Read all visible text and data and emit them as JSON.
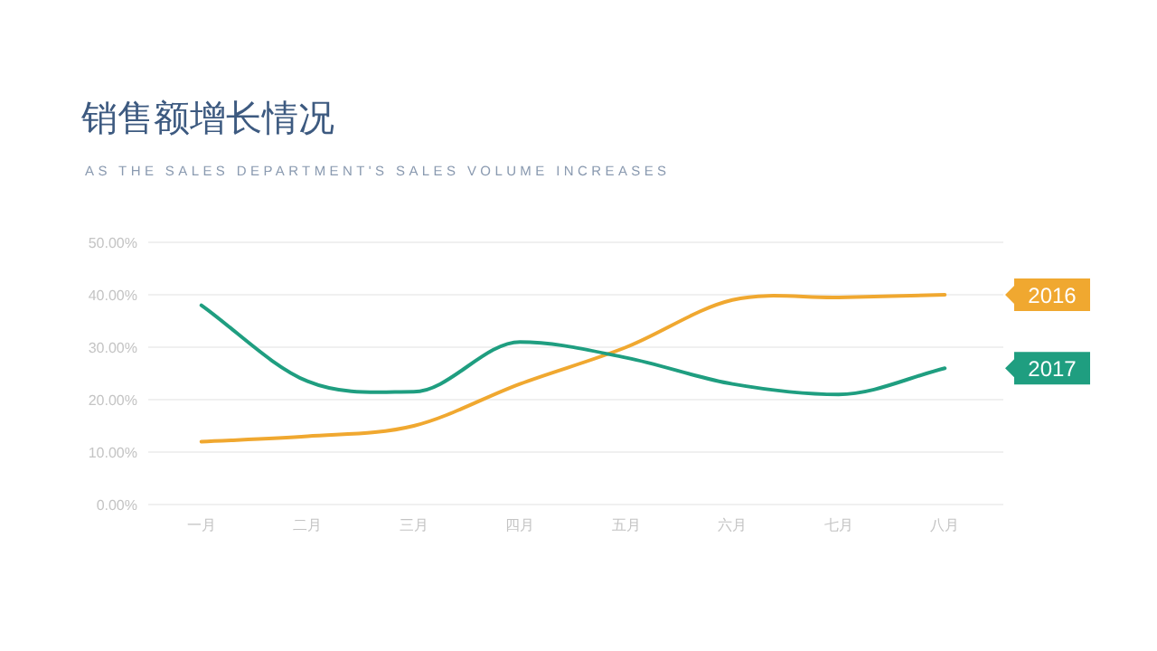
{
  "chart_data": {
    "type": "line",
    "title": "销售额增长情况",
    "subtitle": "AS THE SALES DEPARTMENT'S SALES VOLUME INCREASES",
    "categories": [
      "一月",
      "二月",
      "三月",
      "四月",
      "五月",
      "六月",
      "七月",
      "八月"
    ],
    "series": [
      {
        "name": "2016",
        "color": "#f0a830",
        "values": [
          12,
          13,
          15,
          23,
          30,
          39,
          39.5,
          40
        ]
      },
      {
        "name": "2017",
        "color": "#1f9e80",
        "values": [
          38,
          23.5,
          21.5,
          31,
          28,
          23,
          21,
          26
        ]
      }
    ],
    "ylim": [
      0,
      50
    ],
    "yticks": [
      {
        "value": 0,
        "label": "0.00%"
      },
      {
        "value": 10,
        "label": "10.00%"
      },
      {
        "value": 20,
        "label": "20.00%"
      },
      {
        "value": 30,
        "label": "30.00%"
      },
      {
        "value": 40,
        "label": "40.00%"
      },
      {
        "value": 50,
        "label": "50.00%"
      }
    ],
    "grid": "y",
    "legend": "right",
    "marker": "none",
    "line_style": "solid"
  }
}
